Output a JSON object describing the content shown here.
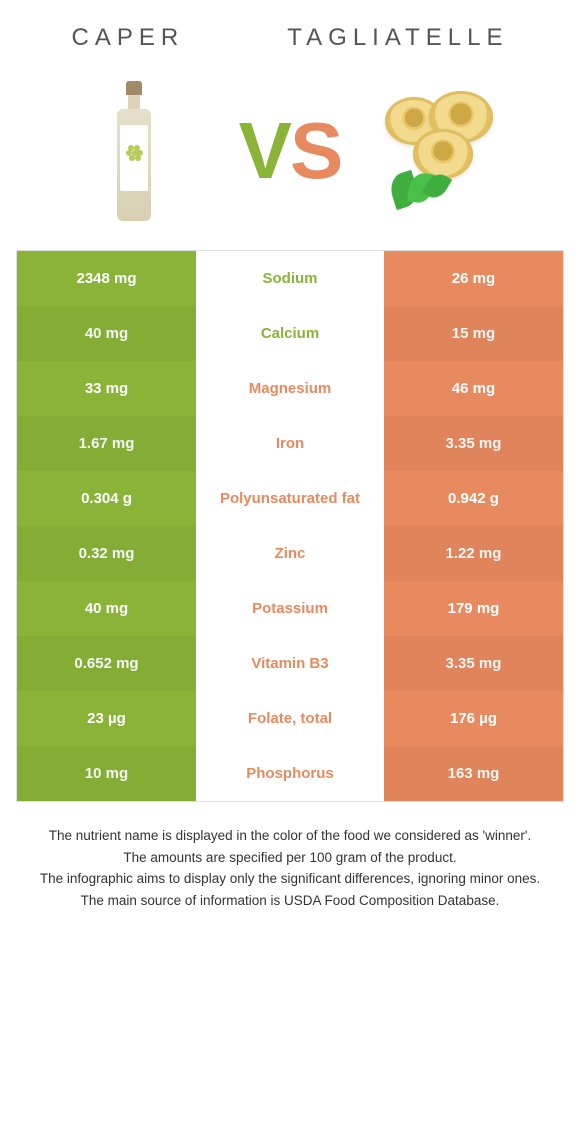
{
  "colors": {
    "left": "#8ab437",
    "right": "#e88a5f",
    "mid_left_text": "#8ab437",
    "mid_right_text": "#e88a5f"
  },
  "header": {
    "left": "Caper",
    "right": "Tagliatelle"
  },
  "rows": [
    {
      "nutrient": "Sodium",
      "left": "2348 mg",
      "right": "26 mg",
      "winner": "left"
    },
    {
      "nutrient": "Calcium",
      "left": "40 mg",
      "right": "15 mg",
      "winner": "left"
    },
    {
      "nutrient": "Magnesium",
      "left": "33 mg",
      "right": "46 mg",
      "winner": "right"
    },
    {
      "nutrient": "Iron",
      "left": "1.67 mg",
      "right": "3.35 mg",
      "winner": "right"
    },
    {
      "nutrient": "Polyunsaturated fat",
      "left": "0.304 g",
      "right": "0.942 g",
      "winner": "right"
    },
    {
      "nutrient": "Zinc",
      "left": "0.32 mg",
      "right": "1.22 mg",
      "winner": "right"
    },
    {
      "nutrient": "Potassium",
      "left": "40 mg",
      "right": "179 mg",
      "winner": "right"
    },
    {
      "nutrient": "Vitamin B3",
      "left": "0.652 mg",
      "right": "3.35 mg",
      "winner": "right"
    },
    {
      "nutrient": "Folate, total",
      "left": "23 µg",
      "right": "176 µg",
      "winner": "right"
    },
    {
      "nutrient": "Phosphorus",
      "left": "10 mg",
      "right": "163 mg",
      "winner": "right"
    }
  ],
  "notes": [
    "The nutrient name is displayed in the color of the food we considered as 'winner'.",
    "The amounts are specified per 100 gram of the product.",
    "The infographic aims to display only the significant differences, ignoring minor ones.",
    "The main source of information is USDA Food Composition Database."
  ]
}
